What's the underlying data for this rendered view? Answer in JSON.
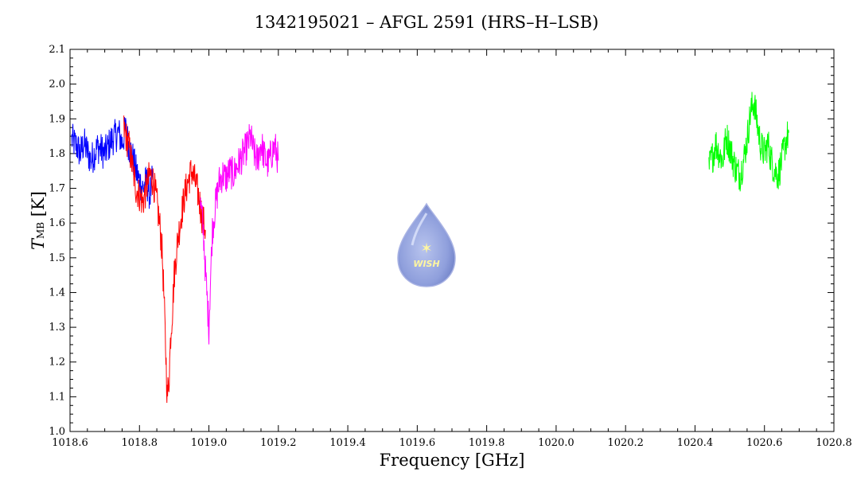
{
  "chart_data": {
    "type": "line",
    "title": "1342195021 – AFGL 2591 (HRS–H–LSB)",
    "xlabel": "Frequency [GHz]",
    "ylabel_main": "T",
    "ylabel_sub": "MB",
    "ylabel_unit": "[K]",
    "xlim": [
      1018.6,
      1020.8
    ],
    "ylim": [
      1.0,
      2.1
    ],
    "xticks": [
      "1018.6",
      "1018.8",
      "1019.0",
      "1019.2",
      "1019.4",
      "1019.6",
      "1019.8",
      "1020.0",
      "1020.2",
      "1020.4",
      "1020.6",
      "1020.8"
    ],
    "yticks": [
      "1.0",
      "1.1",
      "1.2",
      "1.3",
      "1.4",
      "1.5",
      "1.6",
      "1.7",
      "1.8",
      "1.9",
      "2.0",
      "2.1"
    ],
    "grid": false,
    "logo_text": "WISH",
    "series": [
      {
        "color": "#0000ff",
        "x": [
          1018.605,
          1018.62,
          1018.63,
          1018.64,
          1018.66,
          1018.68,
          1018.7,
          1018.72,
          1018.74,
          1018.75,
          1018.76,
          1018.77,
          1018.78,
          1018.79,
          1018.8,
          1018.81,
          1018.82,
          1018.83,
          1018.84
        ],
        "y": [
          1.84,
          1.82,
          1.8,
          1.83,
          1.78,
          1.82,
          1.8,
          1.84,
          1.86,
          1.83,
          1.87,
          1.82,
          1.79,
          1.75,
          1.72,
          1.7,
          1.72,
          1.68,
          1.74
        ]
      },
      {
        "color": "#ff0000",
        "x": [
          1018.755,
          1018.77,
          1018.78,
          1018.79,
          1018.8,
          1018.81,
          1018.82,
          1018.83,
          1018.84,
          1018.85,
          1018.855,
          1018.86,
          1018.865,
          1018.87,
          1018.875,
          1018.88,
          1018.885,
          1018.89,
          1018.895,
          1018.9,
          1018.91,
          1018.92,
          1018.93,
          1018.94,
          1018.95,
          1018.96,
          1018.97,
          1018.98,
          1018.99
        ],
        "y": [
          1.87,
          1.82,
          1.76,
          1.7,
          1.68,
          1.66,
          1.7,
          1.74,
          1.72,
          1.66,
          1.62,
          1.58,
          1.52,
          1.4,
          1.25,
          1.1,
          1.15,
          1.28,
          1.35,
          1.45,
          1.55,
          1.62,
          1.68,
          1.72,
          1.75,
          1.72,
          1.68,
          1.62,
          1.58
        ]
      },
      {
        "color": "#ff00ff",
        "x": [
          1018.975,
          1018.98,
          1018.985,
          1018.99,
          1018.995,
          1019.0,
          1019.005,
          1019.01,
          1019.02,
          1019.03,
          1019.04,
          1019.05,
          1019.06,
          1019.07,
          1019.08,
          1019.09,
          1019.1,
          1019.11,
          1019.12,
          1019.13,
          1019.14,
          1019.15,
          1019.16,
          1019.17,
          1019.18,
          1019.19,
          1019.2
        ],
        "y": [
          1.66,
          1.62,
          1.56,
          1.46,
          1.38,
          1.3,
          1.45,
          1.58,
          1.66,
          1.72,
          1.74,
          1.73,
          1.75,
          1.74,
          1.76,
          1.78,
          1.8,
          1.82,
          1.85,
          1.8,
          1.78,
          1.83,
          1.79,
          1.77,
          1.8,
          1.82,
          1.78
        ]
      },
      {
        "color": "#00ff00",
        "x": [
          1020.44,
          1020.45,
          1020.46,
          1020.47,
          1020.48,
          1020.49,
          1020.5,
          1020.51,
          1020.52,
          1020.53,
          1020.54,
          1020.55,
          1020.56,
          1020.57,
          1020.58,
          1020.59,
          1020.6,
          1020.61,
          1020.62,
          1020.63,
          1020.64,
          1020.65,
          1020.66,
          1020.67
        ],
        "y": [
          1.76,
          1.79,
          1.83,
          1.8,
          1.78,
          1.85,
          1.82,
          1.78,
          1.75,
          1.74,
          1.78,
          1.84,
          1.92,
          1.95,
          1.88,
          1.82,
          1.8,
          1.83,
          1.78,
          1.75,
          1.74,
          1.78,
          1.83,
          1.86
        ]
      }
    ]
  }
}
